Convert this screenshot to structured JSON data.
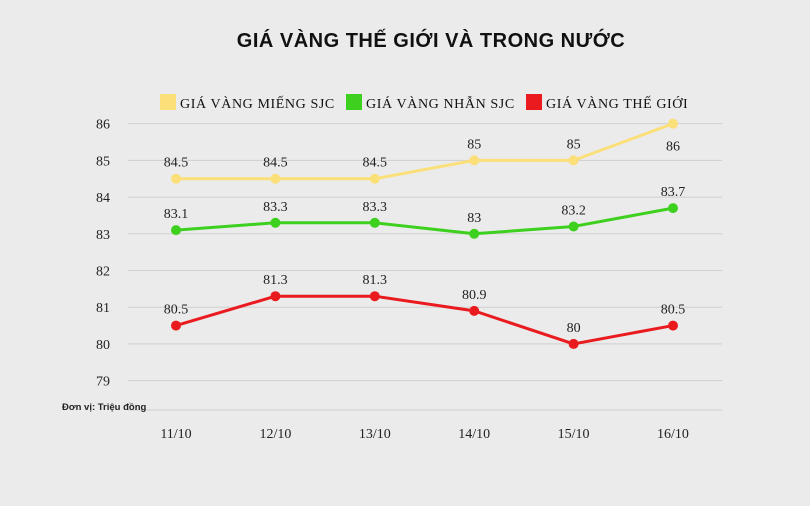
{
  "chart_data": {
    "type": "line",
    "title": "GIÁ VÀNG THẾ GIỚI VÀ TRONG NƯỚC",
    "unit_note": "Đơn vị: Triệu đồng",
    "categories": [
      "11/10",
      "12/10",
      "13/10",
      "14/10",
      "15/10",
      "16/10"
    ],
    "yticks": [
      79,
      80,
      81,
      82,
      83,
      84,
      85,
      86
    ],
    "ylim": [
      78.2,
      86.1
    ],
    "grid": true,
    "legend_position": "top",
    "series": [
      {
        "name": "GIÁ VÀNG MIẾNG SJC",
        "color": "#fbe07a",
        "values": [
          84.5,
          84.5,
          84.5,
          85,
          85,
          86
        ]
      },
      {
        "name": "GIÁ VÀNG NHẪN SJC",
        "color": "#3ed01e",
        "values": [
          83.1,
          83.3,
          83.3,
          83,
          83.2,
          83.7
        ]
      },
      {
        "name": "GIÁ VÀNG THẾ GIỚI",
        "color": "#ea1b1f",
        "values": [
          80.5,
          81.3,
          81.3,
          80.9,
          80,
          80.5
        ]
      }
    ]
  }
}
